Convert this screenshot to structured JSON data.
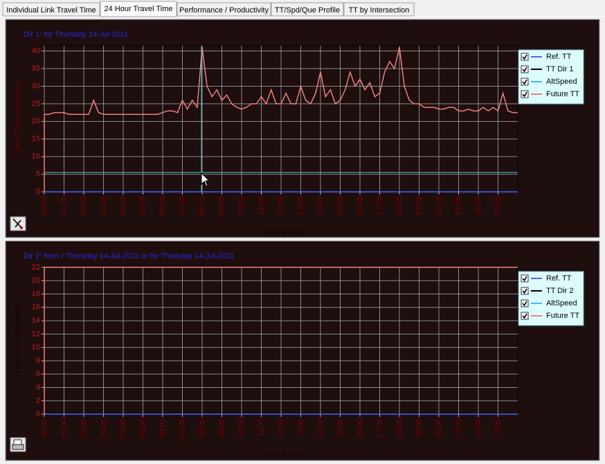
{
  "tabs": [
    {
      "label": "Individual Link Travel Time"
    },
    {
      "label": "24 Hour Travel Time"
    },
    {
      "label": "Performance / Productivity"
    },
    {
      "label": "TT/Spd/Que Profile"
    },
    {
      "label": "TT by Intersection"
    }
  ],
  "chart_data": [
    {
      "type": "line",
      "title": "Dir 1:  for Thursday 14-Jul-2011",
      "y_label": "Travel Time (minutes)",
      "x_label": "Time of day",
      "xlim": [
        0,
        24
      ],
      "ylim": [
        0,
        41.5
      ],
      "grid": true,
      "legend": "right",
      "yticks": [
        0,
        5,
        10,
        15,
        20,
        25,
        30,
        35,
        40
      ],
      "xticks": [
        {
          "value": 0,
          "label": "00:00"
        },
        {
          "value": 1,
          "label": "01:00"
        },
        {
          "value": 2,
          "label": "02:00"
        },
        {
          "value": 3,
          "label": "03:00"
        },
        {
          "value": 4,
          "label": "04:00"
        },
        {
          "value": 5,
          "label": "05:00"
        },
        {
          "value": 6,
          "label": "06:00"
        },
        {
          "value": 7,
          "label": "07:00"
        },
        {
          "value": 8,
          "label": "08:00"
        },
        {
          "value": 9,
          "label": "09:00"
        },
        {
          "value": 10,
          "label": "10:00"
        },
        {
          "value": 11,
          "label": "11:00"
        },
        {
          "value": 12,
          "label": "12:00"
        },
        {
          "value": 13,
          "label": "13:00"
        },
        {
          "value": 14,
          "label": "14:00"
        },
        {
          "value": 15,
          "label": "15:00"
        },
        {
          "value": 16,
          "label": "16:00"
        },
        {
          "value": 17,
          "label": "17:00"
        },
        {
          "value": 18,
          "label": "18:00"
        },
        {
          "value": 19,
          "label": "19:00"
        },
        {
          "value": 20,
          "label": "20:00"
        },
        {
          "value": 21,
          "label": "21:00"
        },
        {
          "value": 22,
          "label": "22:00"
        },
        {
          "value": 23,
          "label": "23:00"
        }
      ],
      "series": [
        {
          "name": "Ref. TT",
          "color": "#4a64ff",
          "x": [
            0,
            24
          ],
          "values": [
            0,
            0
          ]
        },
        {
          "name": "TT Dir 1",
          "color": "#000000",
          "x": [],
          "values": []
        },
        {
          "name": "AltSpeed",
          "color": "#44b4ff",
          "x": [],
          "values": []
        },
        {
          "name": "Future TT",
          "color": "#f08080",
          "x": [
            0,
            0,
            0.25,
            0.5,
            0.75,
            1,
            1.25,
            1.5,
            1.75,
            2,
            2.25,
            2.5,
            2.75,
            3,
            3.25,
            3.5,
            3.75,
            4,
            4.25,
            4.5,
            4.75,
            5,
            5.25,
            5.5,
            5.75,
            6,
            6.25,
            6.5,
            6.75,
            7,
            7.25,
            7.5,
            7.75,
            8,
            8.25,
            8.5,
            8.75,
            9,
            9.25,
            9.5,
            9.75,
            10,
            10.25,
            10.5,
            10.75,
            11,
            11.25,
            11.5,
            11.75,
            12,
            12.25,
            12.5,
            12.75,
            13,
            13.25,
            13.5,
            13.75,
            14,
            14.25,
            14.5,
            14.75,
            15,
            15.25,
            15.5,
            15.75,
            16,
            16.25,
            16.5,
            16.75,
            17,
            17.25,
            17.5,
            17.75,
            18,
            18.25,
            18.5,
            18.75,
            19,
            19.25,
            19.5,
            19.75,
            20,
            20.25,
            20.5,
            20.75,
            21,
            21.25,
            21.5,
            21.75,
            22,
            22.25,
            22.5,
            22.75,
            23,
            23.25,
            23.5,
            23.75,
            24
          ],
          "values": [
            0,
            22,
            22,
            22.5,
            22.5,
            22.5,
            22,
            22,
            22,
            22,
            22,
            26,
            22.5,
            22,
            22,
            22,
            22,
            22,
            22,
            22,
            22,
            22,
            22,
            22,
            22,
            22.5,
            23,
            23,
            22.5,
            26,
            23.5,
            26,
            24,
            41,
            30,
            27,
            29,
            26,
            27.5,
            25,
            24,
            23.5,
            24,
            25,
            25,
            27,
            25,
            29,
            25,
            25,
            28,
            25,
            25,
            30,
            26,
            25,
            28,
            34,
            27,
            29,
            25,
            26,
            29,
            34,
            30,
            32,
            29,
            31,
            27,
            28,
            34,
            37,
            35,
            41,
            30,
            26,
            25,
            25,
            24,
            24,
            24,
            23.5,
            23.5,
            24,
            24,
            23,
            23,
            23.5,
            23,
            23,
            24,
            23,
            24,
            23,
            28,
            23,
            22.5,
            22.5
          ]
        }
      ]
    },
    {
      "type": "line",
      "title": "Dir 2:  from r Thursday 14-Jul-2011 to  for Thursday 14-Jul-2011",
      "y_label": "Travel Time (minutes)",
      "x_label": "Time of day",
      "xlim": [
        0,
        24
      ],
      "ylim": [
        0,
        22
      ],
      "grid": true,
      "legend": "right",
      "yticks": [
        0,
        2,
        4,
        6,
        8,
        10,
        12,
        14,
        16,
        18,
        20,
        22
      ],
      "xticks": [
        {
          "value": 0,
          "label": "00:00"
        },
        {
          "value": 1,
          "label": "01:00"
        },
        {
          "value": 2,
          "label": "02:00"
        },
        {
          "value": 3,
          "label": "03:00"
        },
        {
          "value": 4,
          "label": "04:00"
        },
        {
          "value": 5,
          "label": "05:00"
        },
        {
          "value": 6,
          "label": "06:00"
        },
        {
          "value": 7,
          "label": "07:00"
        },
        {
          "value": 8,
          "label": "08:00"
        },
        {
          "value": 9,
          "label": "09:00"
        },
        {
          "value": 10,
          "label": "10:00"
        },
        {
          "value": 11,
          "label": "11:00"
        },
        {
          "value": 12,
          "label": "12:00"
        },
        {
          "value": 13,
          "label": "13:00"
        },
        {
          "value": 14,
          "label": "14:00"
        },
        {
          "value": 15,
          "label": "15:00"
        },
        {
          "value": 16,
          "label": "16:00"
        },
        {
          "value": 17,
          "label": "17:00"
        },
        {
          "value": 18,
          "label": "18:00"
        },
        {
          "value": 19,
          "label": "19:00"
        },
        {
          "value": 20,
          "label": "20:00"
        },
        {
          "value": 21,
          "label": "21:00"
        },
        {
          "value": 22,
          "label": "22:00"
        },
        {
          "value": 23,
          "label": "23:00"
        }
      ],
      "series": [
        {
          "name": "Ref. TT",
          "color": "#4a64ff",
          "x": [
            0,
            24
          ],
          "values": [
            0,
            0
          ]
        },
        {
          "name": "TT Dir 2",
          "color": "#000000",
          "x": [],
          "values": []
        },
        {
          "name": "AltSpeed",
          "color": "#44b4ff",
          "x": [],
          "values": []
        },
        {
          "name": "Future TT",
          "color": "#f08080",
          "x": [
            0,
            0,
            24
          ],
          "values": [
            0,
            22,
            22
          ]
        }
      ]
    }
  ]
}
